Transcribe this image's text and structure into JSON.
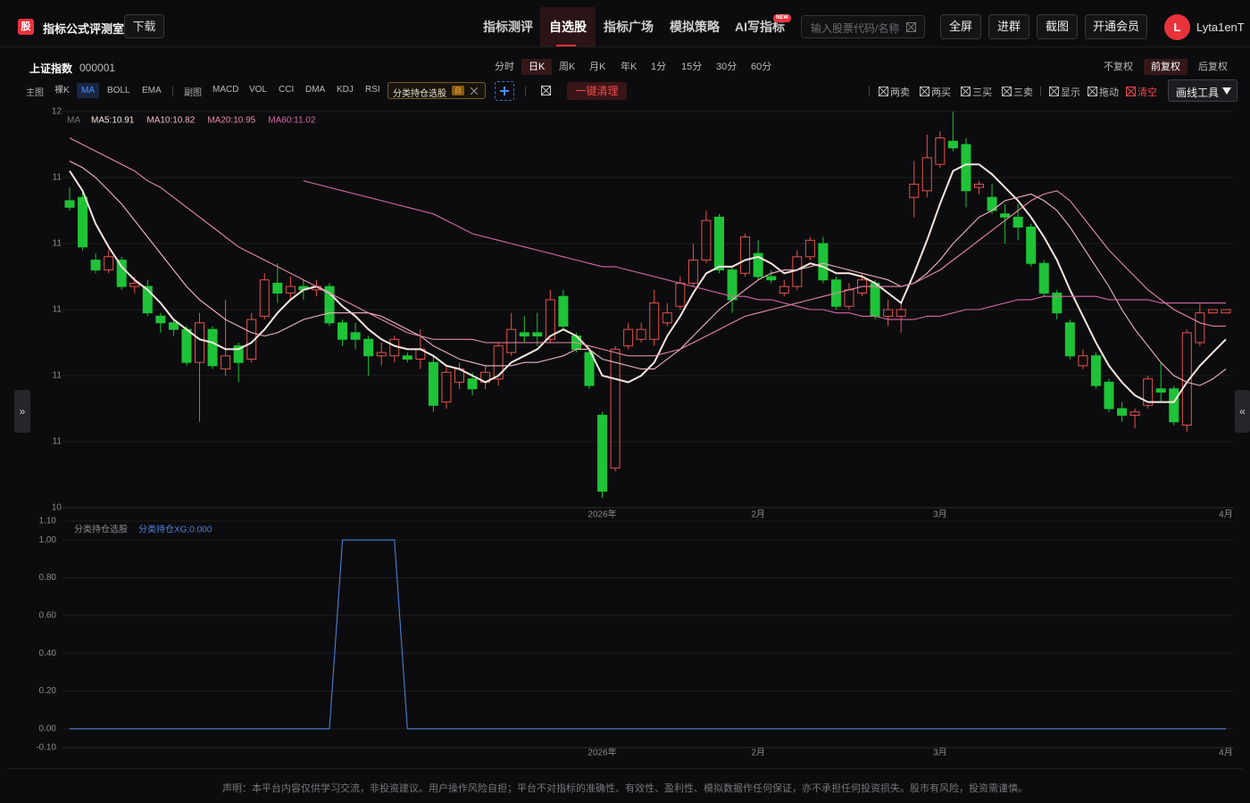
{
  "header": {
    "logo": "股",
    "app_name": "指标公式评测室",
    "download": "下载",
    "nav": [
      "指标测评",
      "自选股",
      "指标广场",
      "模拟策略",
      "AI写指标"
    ],
    "nav_active": "自选股",
    "new_badge": "NEW",
    "search_placeholder": "输入股票代码/名称",
    "buttons": [
      "全屏",
      "进群",
      "截图",
      "开通会员"
    ],
    "avatar": "L",
    "username": "Lyta1enT"
  },
  "toolbar": {
    "stock_name": "上证指数",
    "stock_code": "000001",
    "periods": [
      "分时",
      "日K",
      "周K",
      "月K",
      "年K",
      "1分",
      "15分",
      "30分",
      "60分"
    ],
    "active_period": "日K",
    "adjust": [
      "不复权",
      "前复权",
      "后复权"
    ],
    "active_adjust": "前复权",
    "main_label": "主图",
    "main_indicators": [
      "裸K",
      "MA",
      "BOLL",
      "EMA"
    ],
    "active_main": "MA",
    "sub_label": "副图",
    "sub_indicators": [
      "MACD",
      "VOL",
      "CCI",
      "DMA",
      "KDJ",
      "RSI"
    ],
    "formula_tag": "分类持仓选股",
    "formula_badge": "自",
    "clear_button": "一键清理",
    "toggles": [
      "两卖",
      "两买",
      "三买",
      "三卖",
      "显示",
      "拖动",
      "清空"
    ],
    "draw_tools": "画线工具"
  },
  "side_toggles": [
    "»",
    "«"
  ],
  "chart_data": [
    {
      "type": "candlestick",
      "legend_title": "MA",
      "categories": [
        null,
        null,
        null,
        null,
        null,
        null,
        null,
        null,
        null,
        null,
        null,
        null,
        null,
        null,
        null,
        null,
        null,
        null,
        null,
        null,
        null,
        null,
        null,
        null,
        null,
        null,
        null,
        null,
        null,
        null,
        null,
        null,
        null,
        null,
        null,
        null,
        null,
        null,
        null,
        null,
        null,
        "2026年",
        null,
        null,
        null,
        null,
        null,
        null,
        null,
        null,
        null,
        null,
        null,
        "2月",
        null,
        null,
        null,
        null,
        null,
        null,
        null,
        null,
        null,
        null,
        null,
        null,
        null,
        "3月",
        null,
        null,
        null,
        null,
        null,
        null,
        null,
        null,
        null,
        null,
        null,
        null,
        null,
        null,
        null,
        null,
        null,
        null,
        null,
        null,
        null,
        "4月"
      ],
      "open": [
        11.33,
        11.34,
        11.15,
        11.12,
        11.15,
        11.07,
        11.07,
        10.98,
        10.96,
        10.94,
        10.84,
        10.94,
        10.82,
        10.89,
        10.85,
        10.98,
        11.08,
        11.05,
        11.07,
        11.06,
        11.07,
        10.96,
        10.93,
        10.91,
        10.86,
        10.86,
        10.86,
        10.85,
        10.84,
        10.72,
        10.78,
        10.79,
        10.78,
        10.79,
        10.87,
        10.93,
        10.93,
        10.91,
        11.04,
        10.92,
        10.87,
        10.68,
        10.52,
        10.89,
        10.91,
        10.91,
        10.96,
        11.01,
        11.08,
        11.15,
        11.28,
        11.12,
        11.11,
        11.17,
        11.1,
        11.05,
        11.07,
        11.16,
        11.2,
        11.09,
        11.01,
        11.05,
        11.08,
        10.98,
        10.98,
        11.34,
        11.36,
        11.44,
        11.51,
        11.5,
        11.37,
        11.34,
        11.29,
        11.28,
        11.25,
        11.14,
        11.05,
        10.96,
        10.83,
        10.86,
        10.78,
        10.7,
        10.68,
        10.71,
        10.76,
        10.76,
        10.65,
        10.9,
        10.99,
        10.99
      ],
      "high": [
        11.37,
        11.36,
        11.17,
        11.18,
        11.16,
        11.1,
        11.09,
        10.99,
        10.97,
        10.95,
        10.99,
        10.95,
        11.03,
        10.9,
        10.99,
        11.11,
        11.14,
        11.1,
        11.09,
        11.09,
        11.08,
        10.97,
        10.96,
        10.92,
        10.9,
        10.92,
        10.87,
        10.94,
        10.86,
        10.83,
        10.84,
        10.81,
        10.83,
        10.9,
        10.99,
        10.98,
        10.99,
        11.06,
        11.06,
        10.93,
        10.88,
        10.69,
        10.89,
        10.96,
        10.96,
        11.06,
        11.02,
        11.1,
        11.2,
        11.3,
        11.29,
        11.13,
        11.23,
        11.21,
        11.12,
        11.09,
        11.18,
        11.22,
        11.22,
        11.1,
        11.08,
        11.11,
        11.09,
        11.03,
        11.02,
        11.45,
        11.53,
        11.54,
        11.6,
        11.52,
        11.39,
        11.38,
        11.32,
        11.32,
        11.26,
        11.15,
        11.06,
        10.97,
        10.88,
        10.87,
        10.79,
        10.72,
        10.7,
        10.8,
        10.84,
        10.77,
        10.94,
        11.02,
        11.0,
        11.0
      ],
      "low": [
        11.3,
        11.18,
        11.11,
        11.11,
        11.06,
        11.05,
        10.98,
        10.93,
        10.92,
        10.83,
        10.66,
        10.82,
        10.8,
        10.78,
        10.84,
        10.97,
        11.02,
        11.03,
        11.03,
        11.04,
        10.95,
        10.89,
        10.88,
        10.8,
        10.83,
        10.84,
        10.84,
        10.82,
        10.69,
        10.7,
        10.76,
        10.74,
        10.76,
        10.77,
        10.86,
        10.9,
        10.89,
        10.9,
        10.94,
        10.87,
        10.76,
        10.43,
        10.51,
        10.88,
        10.9,
        10.89,
        10.95,
        11.0,
        11.07,
        11.14,
        11.11,
        10.99,
        11.1,
        11.09,
        11.08,
        11.04,
        11.06,
        11.15,
        11.08,
        11.0,
        11.0,
        11.04,
        10.97,
        10.95,
        10.93,
        11.28,
        11.34,
        11.43,
        11.48,
        11.31,
        11.35,
        11.29,
        11.2,
        11.21,
        11.13,
        11.04,
        10.97,
        10.85,
        10.82,
        10.76,
        10.69,
        10.66,
        10.64,
        10.7,
        10.72,
        10.65,
        10.63,
        10.89,
        10.99,
        10.99
      ],
      "close": [
        11.31,
        11.19,
        11.12,
        11.16,
        11.07,
        11.08,
        10.99,
        10.96,
        10.94,
        10.84,
        10.96,
        10.83,
        10.86,
        10.84,
        10.97,
        11.09,
        11.05,
        11.07,
        11.06,
        11.07,
        10.96,
        10.91,
        10.91,
        10.86,
        10.87,
        10.91,
        10.85,
        10.88,
        10.71,
        10.81,
        10.82,
        10.76,
        10.81,
        10.89,
        10.94,
        10.92,
        10.92,
        11.03,
        10.95,
        10.88,
        10.77,
        10.45,
        10.88,
        10.94,
        10.94,
        11.02,
        10.99,
        11.08,
        11.15,
        11.27,
        11.12,
        11.03,
        11.22,
        11.1,
        11.09,
        11.07,
        11.16,
        11.21,
        11.09,
        11.01,
        11.06,
        11.09,
        10.98,
        11.0,
        11.0,
        11.38,
        11.46,
        11.52,
        11.49,
        11.36,
        11.38,
        11.3,
        11.28,
        11.25,
        11.14,
        11.05,
        10.99,
        10.86,
        10.86,
        10.77,
        10.7,
        10.68,
        10.69,
        10.79,
        10.75,
        10.66,
        10.93,
        10.99,
        11.0,
        11.0
      ],
      "up_color": "#e5534b",
      "down_color": "#1ec337",
      "series": [
        {
          "name": "MA5:10.91",
          "color": "#f6e6de",
          "values": [
            11.42,
            11.36,
            11.26,
            11.19,
            11.13,
            11.09,
            11.06,
            11.02,
            10.97,
            10.94,
            10.91,
            10.9,
            10.88,
            10.88,
            10.9,
            10.94,
            10.99,
            11.03,
            11.06,
            11.07,
            11.05,
            11.01,
            10.98,
            10.94,
            10.91,
            10.89,
            10.88,
            10.88,
            10.86,
            10.83,
            10.82,
            10.8,
            10.78,
            10.8,
            10.84,
            10.86,
            10.88,
            10.92,
            10.94,
            10.92,
            10.88,
            10.8,
            10.79,
            10.78,
            10.8,
            10.84,
            10.92,
            10.98,
            11.05,
            11.11,
            11.13,
            11.13,
            11.15,
            11.16,
            11.14,
            11.11,
            11.12,
            11.14,
            11.13,
            11.11,
            11.11,
            11.1,
            11.08,
            11.05,
            11.02,
            11.11,
            11.21,
            11.32,
            11.42,
            11.44,
            11.44,
            11.41,
            11.37,
            11.33,
            11.28,
            11.22,
            11.15,
            11.06,
            10.98,
            10.9,
            10.83,
            10.78,
            10.74,
            10.72,
            10.72,
            10.72,
            10.78,
            10.83,
            10.87,
            10.91
          ]
        },
        {
          "name": "MA10:10.82",
          "color": "#f2b6c6",
          "values": [
            11.45,
            11.43,
            11.4,
            11.36,
            11.32,
            11.27,
            11.22,
            11.17,
            11.12,
            11.07,
            11.03,
            11.0,
            10.97,
            10.95,
            10.93,
            10.92,
            10.93,
            10.95,
            10.97,
            10.98,
            10.99,
            10.99,
            10.99,
            10.99,
            10.98,
            10.96,
            10.94,
            10.92,
            10.89,
            10.87,
            10.85,
            10.84,
            10.83,
            10.83,
            10.83,
            10.84,
            10.84,
            10.85,
            10.86,
            10.88,
            10.88,
            10.85,
            10.84,
            10.83,
            10.82,
            10.82,
            10.85,
            10.88,
            10.92,
            10.96,
            11.0,
            11.03,
            11.06,
            11.09,
            11.11,
            11.12,
            11.12,
            11.13,
            11.14,
            11.13,
            11.12,
            11.11,
            11.1,
            11.09,
            11.07,
            11.08,
            11.11,
            11.15,
            11.2,
            11.24,
            11.28,
            11.3,
            11.33,
            11.34,
            11.35,
            11.33,
            11.3,
            11.25,
            11.19,
            11.13,
            11.07,
            11.0,
            10.94,
            10.89,
            10.84,
            10.8,
            10.78,
            10.77,
            10.79,
            10.82
          ]
        },
        {
          "name": "MA20:10.95",
          "color": "#e889a8",
          "values": [
            11.52,
            11.5,
            11.48,
            11.46,
            11.44,
            11.42,
            11.39,
            11.37,
            11.34,
            11.31,
            11.28,
            11.25,
            11.22,
            11.19,
            11.17,
            11.15,
            11.13,
            11.11,
            11.09,
            11.07,
            11.05,
            11.03,
            11.01,
            10.99,
            10.97,
            10.95,
            10.93,
            10.92,
            10.91,
            10.91,
            10.91,
            10.91,
            10.9,
            10.9,
            10.9,
            10.9,
            10.9,
            10.9,
            10.9,
            10.9,
            10.89,
            10.88,
            10.87,
            10.86,
            10.86,
            10.86,
            10.87,
            10.88,
            10.9,
            10.92,
            10.94,
            10.96,
            10.98,
            10.99,
            11.0,
            11.01,
            11.02,
            11.03,
            11.04,
            11.05,
            11.06,
            11.07,
            11.07,
            11.07,
            11.07,
            11.08,
            11.1,
            11.12,
            11.15,
            11.18,
            11.21,
            11.24,
            11.27,
            11.3,
            11.33,
            11.35,
            11.36,
            11.33,
            11.28,
            11.23,
            11.18,
            11.14,
            11.1,
            11.06,
            11.03,
            11.0,
            10.98,
            10.96,
            10.95,
            10.95
          ]
        },
        {
          "name": "MA60:11.02",
          "color": "#d46aa6",
          "values": [
            null,
            null,
            null,
            null,
            null,
            null,
            null,
            null,
            null,
            null,
            null,
            null,
            null,
            null,
            null,
            null,
            null,
            null,
            11.39,
            11.38,
            11.37,
            11.36,
            11.35,
            11.34,
            11.33,
            11.32,
            11.31,
            11.3,
            11.29,
            11.27,
            11.25,
            11.23,
            11.22,
            11.21,
            11.2,
            11.19,
            11.18,
            11.17,
            11.16,
            11.15,
            11.14,
            11.13,
            11.13,
            11.12,
            11.11,
            11.1,
            11.09,
            11.08,
            11.07,
            11.06,
            11.05,
            11.04,
            11.04,
            11.03,
            11.03,
            11.02,
            11.01,
            11.0,
            11.0,
            10.99,
            10.99,
            10.98,
            10.98,
            10.97,
            10.97,
            10.97,
            10.98,
            10.98,
            10.99,
            11.0,
            11.0,
            11.01,
            11.02,
            11.03,
            11.03,
            11.04,
            11.04,
            11.04,
            11.04,
            11.04,
            11.03,
            11.03,
            11.03,
            11.03,
            11.02,
            11.02,
            11.02,
            11.02,
            11.02,
            11.02
          ]
        }
      ],
      "ylim": [
        10.4,
        11.6
      ],
      "yticks": [
        {
          "value": 10.4,
          "label": "10"
        },
        {
          "value": 10.6,
          "label": "11"
        },
        {
          "value": 10.8,
          "label": "11"
        },
        {
          "value": 11.0,
          "label": "11"
        },
        {
          "value": 11.2,
          "label": "11"
        },
        {
          "value": 11.4,
          "label": "11"
        },
        {
          "value": 11.6,
          "label": "12"
        }
      ],
      "grid": true
    },
    {
      "type": "line",
      "title": "分类持仓选股",
      "categories": [
        null,
        null,
        null,
        null,
        null,
        null,
        null,
        null,
        null,
        null,
        null,
        null,
        null,
        null,
        null,
        null,
        null,
        null,
        null,
        null,
        null,
        null,
        null,
        null,
        null,
        null,
        null,
        null,
        null,
        null,
        null,
        null,
        null,
        null,
        null,
        null,
        null,
        null,
        null,
        null,
        null,
        "2026年",
        null,
        null,
        null,
        null,
        null,
        null,
        null,
        null,
        null,
        null,
        null,
        "2月",
        null,
        null,
        null,
        null,
        null,
        null,
        null,
        null,
        null,
        null,
        null,
        null,
        null,
        "3月",
        null,
        null,
        null,
        null,
        null,
        null,
        null,
        null,
        null,
        null,
        null,
        null,
        null,
        null,
        null,
        null,
        null,
        null,
        null,
        null,
        null,
        "4月"
      ],
      "series": [
        {
          "name": "分类持仓XG:0.000",
          "color": "#4d7fd6",
          "values": [
            0,
            0,
            0,
            0,
            0,
            0,
            0,
            0,
            0,
            0,
            0,
            0,
            0,
            0,
            0,
            0,
            0,
            0,
            0,
            0,
            0,
            1,
            1,
            1,
            1,
            1,
            0,
            0,
            0,
            0,
            0,
            0,
            0,
            0,
            0,
            0,
            0,
            0,
            0,
            0,
            0,
            0,
            0,
            0,
            0,
            0,
            0,
            0,
            0,
            0,
            0,
            0,
            0,
            0,
            0,
            0,
            0,
            0,
            0,
            0,
            0,
            0,
            0,
            0,
            0,
            0,
            0,
            0,
            0,
            0,
            0,
            0,
            0,
            0,
            0,
            0,
            0,
            0,
            0,
            0,
            0,
            0,
            0,
            0,
            0,
            0,
            0,
            0,
            0,
            0
          ]
        }
      ],
      "ylim": [
        -0.1,
        1.1
      ],
      "yticks": [
        {
          "value": -0.1,
          "label": "-0.10"
        },
        {
          "value": 0,
          "label": "0.00"
        },
        {
          "value": 0.2,
          "label": "0.20"
        },
        {
          "value": 0.4,
          "label": "0.40"
        },
        {
          "value": 0.6,
          "label": "0.60"
        },
        {
          "value": 0.8,
          "label": "0.80"
        },
        {
          "value": 1.0,
          "label": "1.00"
        },
        {
          "value": 1.1,
          "label": "1.10"
        }
      ],
      "grid": true
    }
  ],
  "footer": {
    "disclaimer": "声明：本平台内容仅供学习交流，非投资建议。用户操作风险自担；平台不对指标的准确性、有效性、盈利性、模拟数据作任何保证，亦不承担任何投资损失。股市有风险，投资需谨慎。"
  }
}
